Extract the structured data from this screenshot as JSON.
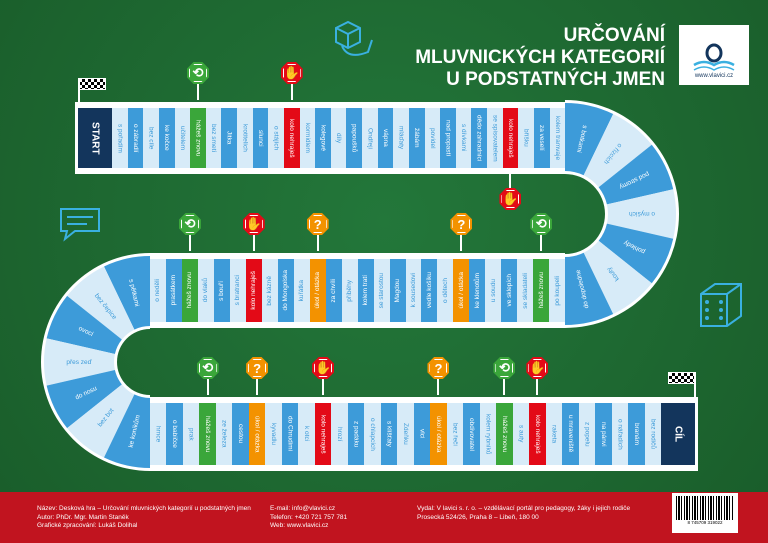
{
  "title": {
    "lines": [
      "URČOVÁNÍ",
      "MLUVNICKÝCH KATEGORIÍ",
      "U PODSTATNÝCH JMEN"
    ]
  },
  "logo": {
    "url": "www.vlavici.cz"
  },
  "colors": {
    "board": "#1f6a31",
    "blue": "#3d9bd9",
    "light": "#d7ebf8",
    "green": "#3aa63a",
    "red": "#e30a17",
    "orange": "#f39200",
    "navy": "#13355c",
    "footer": "#c1141f"
  },
  "rows": {
    "top": [
      {
        "label": "START",
        "type": "s"
      },
      {
        "label": "s pořadím",
        "type": "l"
      },
      {
        "label": "o zábradlí",
        "type": "b"
      },
      {
        "label": "bez cíle",
        "type": "l"
      },
      {
        "label": "ke kočce",
        "type": "b"
      },
      {
        "label": "učitelem",
        "type": "l"
      },
      {
        "label": "hážeš znovu",
        "type": "g"
      },
      {
        "label": "bez smetí",
        "type": "l"
      },
      {
        "label": "Jitka",
        "type": "b"
      },
      {
        "label": "krotitelích",
        "type": "l"
      },
      {
        "label": "slunci",
        "type": "b"
      },
      {
        "label": "o stájích",
        "type": "l"
      },
      {
        "label": "kolo nehraješ",
        "type": "r"
      },
      {
        "label": "kormidlem",
        "type": "l"
      },
      {
        "label": "kolegové",
        "type": "b"
      },
      {
        "label": "díly",
        "type": "l"
      },
      {
        "label": "papoušků",
        "type": "b"
      },
      {
        "label": "Ondřeji",
        "type": "l"
      },
      {
        "label": "vápna",
        "type": "b"
      },
      {
        "label": "mláďaty",
        "type": "l"
      },
      {
        "label": "žábám",
        "type": "b"
      },
      {
        "label": "povidel",
        "type": "l"
      },
      {
        "label": "nad propastí",
        "type": "b"
      },
      {
        "label": "s dívkami",
        "type": "l"
      },
      {
        "label": "dědo zahradníci",
        "type": "b"
      },
      {
        "label": "se spisovatelem",
        "type": "l"
      },
      {
        "label": "kolo nehraješ",
        "type": "r"
      },
      {
        "label": "bříšku",
        "type": "l"
      },
      {
        "label": "za veselí",
        "type": "b"
      },
      {
        "label": "kolem tramvaje",
        "type": "l"
      }
    ],
    "right_curve": [
      {
        "label": "s botkami",
        "type": "b"
      },
      {
        "label": "o řízcích",
        "type": "l"
      },
      {
        "label": "pod stromy",
        "type": "b"
      },
      {
        "label": "o myších",
        "type": "l"
      },
      {
        "label": "pohledy",
        "type": "b"
      },
      {
        "label": "kouty",
        "type": "l"
      },
      {
        "label": "do dopoledne",
        "type": "b"
      }
    ],
    "middle": [
      {
        "label": "o neděli",
        "type": "l"
      },
      {
        "label": "prasátkem",
        "type": "b"
      },
      {
        "label": "hážeš znovu",
        "type": "g"
      },
      {
        "label": "do vlaků",
        "type": "l"
      },
      {
        "label": "s bouří",
        "type": "b"
      },
      {
        "label": "s bratranci",
        "type": "l"
      },
      {
        "label": "kolo nehraješ",
        "type": "r"
      },
      {
        "label": "bez kázně",
        "type": "l"
      },
      {
        "label": "do Mongolska",
        "type": "b"
      },
      {
        "label": "kuřátka",
        "type": "l"
      },
      {
        "label": "úkol / otázka",
        "type": "o"
      },
      {
        "label": "za chvíli",
        "type": "b"
      },
      {
        "label": "příběhy",
        "type": "l"
      },
      {
        "label": "kolem tratí",
        "type": "b"
      },
      {
        "label": "se starostou",
        "type": "l"
      },
      {
        "label": "Magdou",
        "type": "b"
      },
      {
        "label": "k sousedovi",
        "type": "l"
      },
      {
        "label": "vedle košíku",
        "type": "b"
      },
      {
        "label": "o dětech",
        "type": "l"
      },
      {
        "label": "úkol / otázka",
        "type": "o"
      },
      {
        "label": "ke klenotům",
        "type": "b"
      },
      {
        "label": "u soudu",
        "type": "l"
      },
      {
        "label": "ve sklepích",
        "type": "b"
      },
      {
        "label": "se skladateli",
        "type": "l"
      },
      {
        "label": "hážeš znovu",
        "type": "g"
      },
      {
        "label": "po koupeli",
        "type": "l"
      }
    ],
    "left_curve": [
      {
        "label": "s pětkami",
        "type": "b"
      },
      {
        "label": "bez čepice",
        "type": "l"
      },
      {
        "label": "ovocí",
        "type": "b"
      },
      {
        "label": "přes zeď",
        "type": "l"
      },
      {
        "label": "do nosu",
        "type": "b"
      },
      {
        "label": "bez bot",
        "type": "l"
      },
      {
        "label": "ke koníkům",
        "type": "b"
      }
    ],
    "bottom": [
      {
        "label": "hrnce",
        "type": "l"
      },
      {
        "label": "o babičce",
        "type": "b"
      },
      {
        "label": "prak",
        "type": "l"
      },
      {
        "label": "hážeš znovu",
        "type": "g"
      },
      {
        "label": "ze železa",
        "type": "l"
      },
      {
        "label": "cestou",
        "type": "b"
      },
      {
        "label": "úkol / otázka",
        "type": "o"
      },
      {
        "label": "kyvadlu",
        "type": "l"
      },
      {
        "label": "do Chrudimi",
        "type": "b"
      },
      {
        "label": "k otci",
        "type": "l"
      },
      {
        "label": "kolo nehraješ",
        "type": "r"
      },
      {
        "label": "hrozí",
        "type": "l"
      },
      {
        "label": "z padáku",
        "type": "b"
      },
      {
        "label": "o chlapcích",
        "type": "l"
      },
      {
        "label": "s klíšťaty",
        "type": "b"
      },
      {
        "label": "Zdeňku",
        "type": "l"
      },
      {
        "label": "vlci",
        "type": "b"
      },
      {
        "label": "úkol / otázka",
        "type": "o"
      },
      {
        "label": "bez řeči",
        "type": "l"
      },
      {
        "label": "obdivovatel",
        "type": "b"
      },
      {
        "label": "kolem rybníků",
        "type": "l"
      },
      {
        "label": "hážeš znovu",
        "type": "g"
      },
      {
        "label": "s auty",
        "type": "l"
      },
      {
        "label": "kolo nehraješ",
        "type": "r"
      },
      {
        "label": "raketa",
        "type": "l"
      },
      {
        "label": "u mraveniště",
        "type": "b"
      },
      {
        "label": "z popelu",
        "type": "l"
      },
      {
        "label": "na pánvi",
        "type": "b"
      },
      {
        "label": "o nářadích",
        "type": "l"
      },
      {
        "label": "branám",
        "type": "b"
      },
      {
        "label": "bez rodičů",
        "type": "l"
      },
      {
        "label": "CÍL",
        "type": "s"
      }
    ]
  },
  "signs": {
    "g": "⟲",
    "r": "✋",
    "o": "?"
  },
  "footer": {
    "col1": [
      "Název: Desková hra – Určování mluvnických kategorií u podstatných jmen",
      "Autor: PhDr. Mgr. Martin Staněk",
      "Grafické zpracování: Lukáš Dolihal"
    ],
    "col2": [
      "E-mail: info@vlavici.cz",
      "Telefon: +420 721 757 781",
      "Web: www.vlavici.cz"
    ],
    "col3": [
      "Vydal: V lavici s. r. o. – vzdělávací portál pro pedagogy, žáky i jejich rodiče",
      "Prosecká 524/26, Praha 8 – Libeň, 180 00"
    ],
    "barcode": "8 745709 319022"
  }
}
